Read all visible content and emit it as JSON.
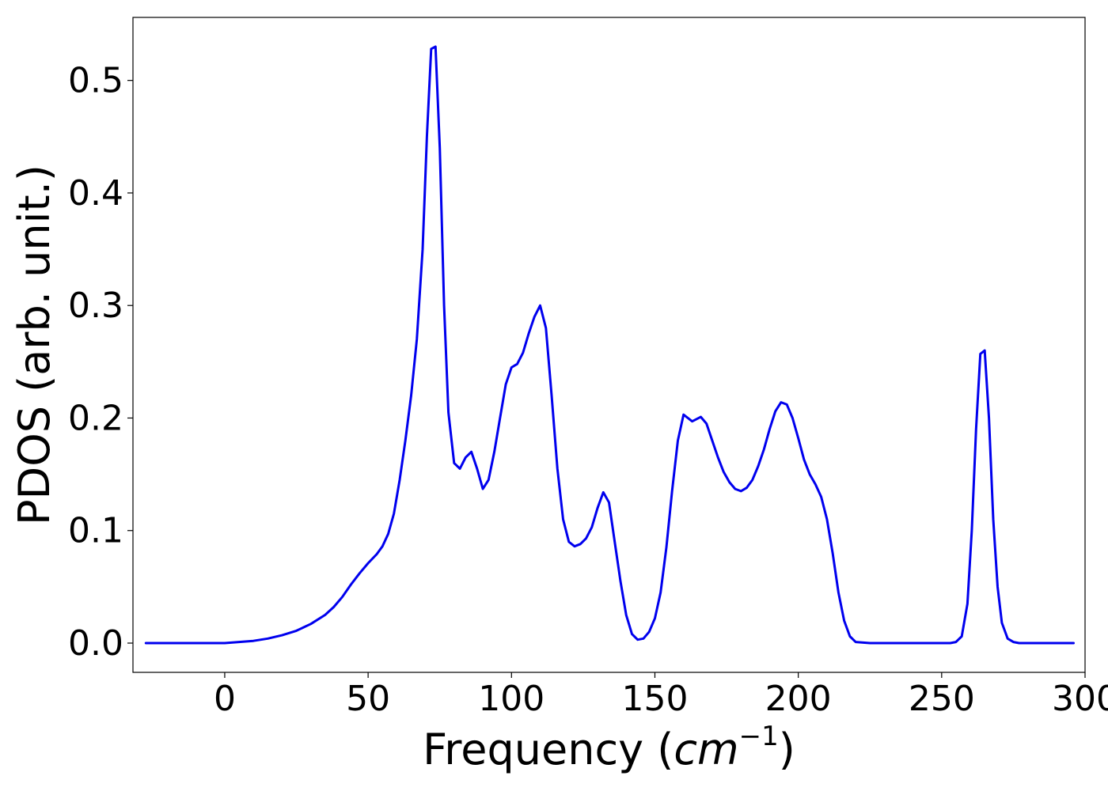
{
  "chart_data": {
    "type": "line",
    "title": "",
    "xlabel": "Frequency",
    "xlabel_unit_base": "cm",
    "xlabel_unit_exp": "−1",
    "ylabel": "PDOS (arb. unit.)",
    "xlim": [
      -32,
      300
    ],
    "ylim": [
      -0.026,
      0.556
    ],
    "xticks": [
      0,
      50,
      100,
      150,
      200,
      250,
      300
    ],
    "yticks": [
      0.0,
      0.1,
      0.2,
      0.3,
      0.4,
      0.5
    ],
    "xtick_labels": [
      "0",
      "50",
      "100",
      "150",
      "200",
      "250",
      "300"
    ],
    "ytick_labels": [
      "0.0",
      "0.1",
      "0.2",
      "0.3",
      "0.4",
      "0.5"
    ],
    "grid": false,
    "legend": "none",
    "series": [
      {
        "color": "#0000ee",
        "x": [
          -27.5,
          0,
          5,
          10,
          15,
          20,
          25,
          30,
          35,
          38,
          41,
          44,
          47,
          50,
          53,
          55,
          57,
          59,
          61,
          63,
          65,
          67,
          69,
          70.5,
          72,
          73.5,
          75,
          76.5,
          78,
          80,
          82,
          84,
          86,
          88,
          90,
          92,
          94,
          96,
          98,
          100,
          102,
          104,
          106,
          108,
          110,
          112,
          114,
          116,
          118,
          120,
          122,
          124,
          126,
          128,
          130,
          132,
          134,
          136,
          138,
          140,
          142,
          144,
          146,
          148,
          150,
          152,
          154,
          156,
          158,
          160,
          163,
          166,
          168,
          170,
          172,
          174,
          176,
          178,
          180,
          182,
          184,
          186,
          188,
          190,
          192,
          194,
          196,
          198,
          200,
          202,
          204,
          206,
          208,
          210,
          212,
          214,
          216,
          218,
          220,
          225,
          250,
          253,
          255,
          257,
          259,
          260.5,
          262,
          263.5,
          265,
          266.5,
          268,
          269.5,
          271,
          273,
          275,
          277,
          280,
          296
        ],
        "y": [
          0.0,
          0.0,
          0.001,
          0.002,
          0.004,
          0.007,
          0.011,
          0.017,
          0.025,
          0.032,
          0.041,
          0.052,
          0.062,
          0.071,
          0.079,
          0.086,
          0.097,
          0.115,
          0.145,
          0.18,
          0.22,
          0.27,
          0.35,
          0.45,
          0.528,
          0.53,
          0.44,
          0.3,
          0.205,
          0.16,
          0.155,
          0.165,
          0.17,
          0.155,
          0.137,
          0.145,
          0.17,
          0.2,
          0.23,
          0.245,
          0.248,
          0.258,
          0.275,
          0.29,
          0.3,
          0.28,
          0.22,
          0.155,
          0.11,
          0.09,
          0.086,
          0.088,
          0.093,
          0.103,
          0.12,
          0.134,
          0.125,
          0.09,
          0.055,
          0.025,
          0.008,
          0.003,
          0.004,
          0.01,
          0.022,
          0.045,
          0.085,
          0.135,
          0.18,
          0.203,
          0.197,
          0.201,
          0.195,
          0.18,
          0.165,
          0.152,
          0.143,
          0.137,
          0.135,
          0.138,
          0.145,
          0.157,
          0.172,
          0.19,
          0.206,
          0.214,
          0.212,
          0.2,
          0.182,
          0.163,
          0.15,
          0.141,
          0.13,
          0.11,
          0.08,
          0.045,
          0.02,
          0.006,
          0.001,
          0.0,
          0.0,
          0.0,
          0.001,
          0.006,
          0.035,
          0.1,
          0.19,
          0.257,
          0.26,
          0.2,
          0.11,
          0.05,
          0.018,
          0.004,
          0.001,
          0.0,
          0.0,
          0.0
        ]
      }
    ]
  }
}
